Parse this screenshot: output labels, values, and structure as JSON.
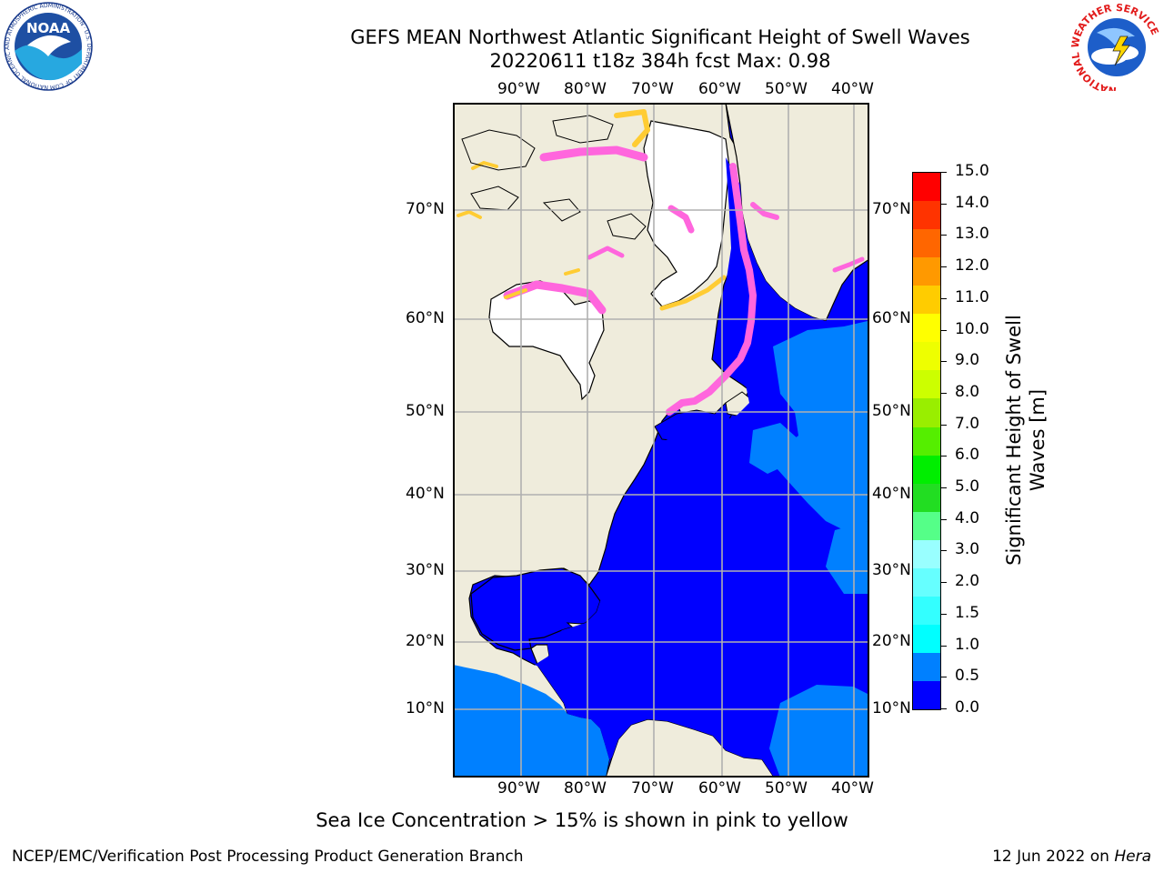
{
  "title": {
    "line1": "GEFS MEAN Northwest Atlantic Significant Height of Swell Waves",
    "line2": "20220611 t18z 384h fcst   Max: 0.98"
  },
  "map": {
    "lon_labels": [
      "90°W",
      "80°W",
      "70°W",
      "60°W",
      "50°W",
      "40°W"
    ],
    "lat_labels": [
      "70°N",
      "60°N",
      "50°N",
      "40°N",
      "30°N",
      "20°N",
      "10°N"
    ],
    "colors": {
      "land": "#efecdc",
      "ice": "#ffffff",
      "ocean_low": "#0000ff",
      "ocean_mid": "#0080ff",
      "sea_ice_pink": "#ff66dd",
      "sea_ice_yellow": "#ffcc33",
      "grid": "#b0b0b0"
    }
  },
  "colorbar": {
    "title": "Significant Height of Swell Waves [m]",
    "ticks": [
      "15.0",
      "14.0",
      "13.0",
      "12.0",
      "11.0",
      "10.0",
      "9.0",
      "8.0",
      "7.0",
      "6.0",
      "5.0",
      "4.0",
      "3.0",
      "2.0",
      "1.5",
      "1.0",
      "0.5",
      "0.0"
    ],
    "bin_colors": [
      "#0000ff",
      "#0080ff",
      "#00ffff",
      "#33ffff",
      "#66ffff",
      "#99ffff",
      "#55ff88",
      "#22dd22",
      "#00ee00",
      "#55ee00",
      "#99ee00",
      "#ccff00",
      "#eeff00",
      "#ffff00",
      "#ffcc00",
      "#ff9900",
      "#ff6600",
      "#ff3300",
      "#ff0000"
    ]
  },
  "caption": "Sea Ice Concentration > 15% is shown in pink to yellow",
  "footer": {
    "left": "NCEP/EMC/Verification Post Processing Product Generation Branch",
    "right_date": "12 Jun 2022 on",
    "right_host": "Hera"
  },
  "logos": {
    "noaa": "NOAA",
    "noaa_ring": "NATIONAL OCEANIC AND ATMOSPHERIC ADMINISTRATION · U.S. DEPARTMENT OF COMMERCE",
    "nws_ring": "NATIONAL WEATHER SERVICE"
  }
}
